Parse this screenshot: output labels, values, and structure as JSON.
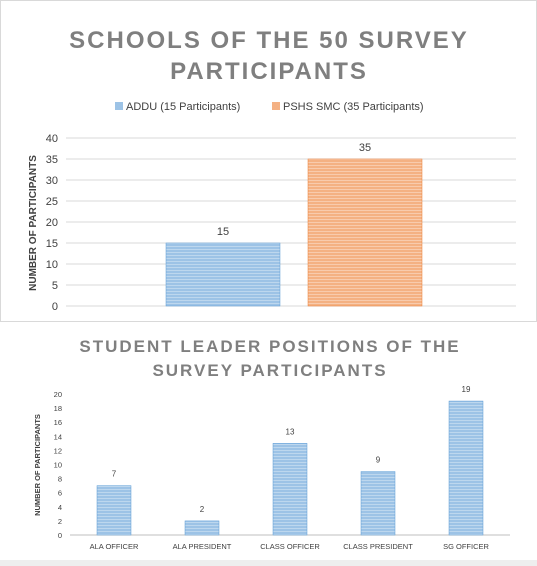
{
  "chart_data": [
    {
      "type": "bar",
      "title_lines": [
        "SCHOOLS OF THE 50 SURVEY",
        "PARTICIPANTS"
      ],
      "ylabel": "NUMBER OF PARTICIPANTS",
      "ylim": [
        0,
        40
      ],
      "yticks": [
        0,
        5,
        10,
        15,
        20,
        25,
        30,
        35,
        40
      ],
      "grid": true,
      "legend_position": "top",
      "series": [
        {
          "name": "ADDU (15 Participants)",
          "values": [
            15
          ],
          "color": "#9dc3e6"
        },
        {
          "name": "PSHS SMC (35 Participants)",
          "values": [
            35
          ],
          "color": "#f4b183"
        }
      ],
      "data_labels": [
        "15",
        "35"
      ]
    },
    {
      "type": "bar",
      "title_lines": [
        "STUDENT LEADER POSITIONS OF THE",
        "SURVEY PARTICIPANTS"
      ],
      "ylabel": "NUMBER OF PARTICIPANTS",
      "ylim": [
        0,
        20
      ],
      "yticks": [
        0,
        2,
        4,
        6,
        8,
        10,
        12,
        14,
        16,
        18,
        20
      ],
      "grid": false,
      "categories": [
        "ALA OFFICER",
        "ALA PRESIDENT",
        "CLASS OFFICER",
        "CLASS PRESIDENT",
        "SG OFFICER"
      ],
      "values": [
        7,
        2,
        13,
        9,
        19
      ],
      "color": "#9dc3e6"
    }
  ]
}
